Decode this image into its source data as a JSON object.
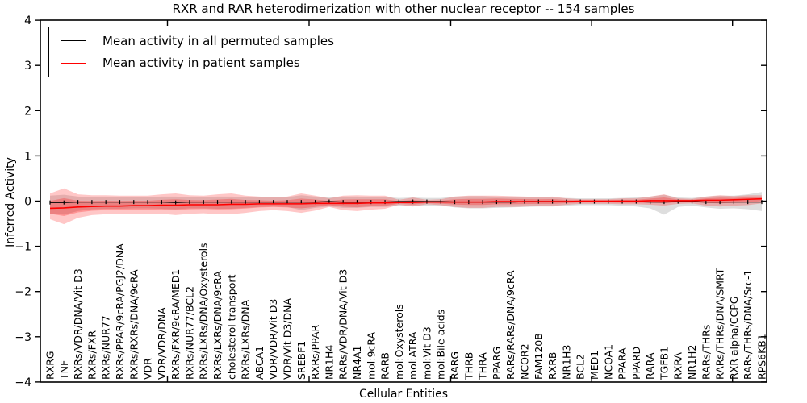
{
  "title": "RXR and RAR heterodimerization with other nuclear receptor -- 154 samples",
  "legend": {
    "items": [
      {
        "label": "Mean activity in all permuted samples",
        "color": "#000000"
      },
      {
        "label": "Mean activity in patient samples",
        "color": "#ff0000"
      }
    ]
  },
  "chart_data": {
    "type": "line",
    "title": "RXR and RAR heterodimerization with other nuclear receptor -- 154 samples",
    "xlabel": "Cellular Entities",
    "ylabel": "Inferred Activity",
    "ylim": [
      -4,
      4
    ],
    "yticks": [
      -4,
      -3,
      -2,
      -1,
      0,
      1,
      2,
      3,
      4
    ],
    "grid": false,
    "legend_position": "upper left",
    "categories": [
      "RXRG",
      "TNF",
      "RXRs/VDR/DNA/Vit D3",
      "RXRs/FXR",
      "RXRs/NUR77",
      "RXRs/PPAR/9cRA/PGJ2/DNA",
      "RXRs/RXRs/DNA/9cRA",
      "VDR",
      "VDR/VDR/DNA",
      "RXRs/FXR/9cRA/MED1",
      "RXRs/NUR77/BCL2",
      "RXRs/LXRs/DNA/Oxysterols",
      "RXRs/LXRs/DNA/9cRA",
      "cholesterol transport",
      "RXRs/LXRs/DNA",
      "ABCA1",
      "VDR/VDR/Vit D3",
      "VDR/Vit D3/DNA",
      "SREBF1",
      "RXRs/PPAR",
      "NR1H4",
      "RARs/VDR/DNA/Vit D3",
      "NR4A1",
      "mol:9cRA",
      "RARB",
      "mol:Oxysterols",
      "mol:ATRA",
      "mol:Vit D3",
      "mol:Bile acids",
      "RARG",
      "THRB",
      "THRA",
      "PPARG",
      "RARs/RARs/DNA/9cRA",
      "NCOR2",
      "FAM120B",
      "RXRB",
      "NR1H3",
      "BCL2",
      "MED1",
      "NCOA1",
      "PPARA",
      "PPARD",
      "RARA",
      "TGFB1",
      "RXRA",
      "NR1H2",
      "RARs/THRs",
      "RARs/THRs/DNA/SMRT",
      "RXR alpha/CCPG",
      "RARs/THRs/DNA/Src-1",
      "RPS6KB1"
    ],
    "series": [
      {
        "name": "Mean activity in all permuted samples",
        "color": "#000000",
        "values": [
          -0.03,
          -0.03,
          -0.02,
          -0.02,
          -0.02,
          -0.02,
          -0.02,
          -0.02,
          -0.02,
          -0.03,
          -0.02,
          -0.02,
          -0.02,
          -0.02,
          -0.02,
          -0.02,
          -0.02,
          -0.02,
          -0.02,
          -0.02,
          -0.01,
          -0.02,
          -0.02,
          -0.02,
          -0.02,
          -0.01,
          -0.01,
          -0.01,
          -0.01,
          -0.02,
          -0.02,
          -0.02,
          -0.02,
          -0.02,
          -0.01,
          -0.01,
          -0.01,
          -0.01,
          -0.01,
          -0.01,
          -0.01,
          -0.01,
          -0.01,
          -0.02,
          -0.02,
          -0.01,
          -0.01,
          -0.02,
          -0.02,
          -0.02,
          -0.02,
          -0.02
        ]
      },
      {
        "name": "Mean activity in patient samples",
        "color": "#ff0000",
        "values": [
          -0.16,
          -0.15,
          -0.13,
          -0.12,
          -0.11,
          -0.11,
          -0.1,
          -0.1,
          -0.09,
          -0.09,
          -0.08,
          -0.08,
          -0.08,
          -0.07,
          -0.07,
          -0.06,
          -0.06,
          -0.06,
          -0.06,
          -0.05,
          -0.05,
          -0.05,
          -0.05,
          -0.04,
          -0.04,
          -0.03,
          -0.03,
          -0.02,
          -0.02,
          -0.02,
          -0.02,
          -0.02,
          -0.01,
          -0.01,
          -0.01,
          -0.01,
          -0.01,
          -0.01,
          0.0,
          0.0,
          0.0,
          0.0,
          0.0,
          0.01,
          0.01,
          0.01,
          0.01,
          0.02,
          0.02,
          0.03,
          0.04,
          0.05
        ]
      }
    ],
    "bands": [
      {
        "name": "permuted samples range",
        "color": "#000000",
        "opacity": 0.13,
        "upper": [
          0.12,
          0.14,
          0.1,
          0.09,
          0.09,
          0.09,
          0.09,
          0.09,
          0.1,
          0.1,
          0.09,
          0.09,
          0.1,
          0.1,
          0.09,
          0.08,
          0.08,
          0.09,
          0.13,
          0.1,
          0.08,
          0.1,
          0.1,
          0.09,
          0.09,
          0.07,
          0.08,
          0.07,
          0.07,
          0.1,
          0.11,
          0.11,
          0.1,
          0.1,
          0.09,
          0.08,
          0.08,
          0.07,
          0.06,
          0.06,
          0.06,
          0.07,
          0.08,
          0.1,
          0.14,
          0.08,
          0.07,
          0.1,
          0.12,
          0.12,
          0.15,
          0.2
        ],
        "lower": [
          -0.28,
          -0.3,
          -0.22,
          -0.18,
          -0.17,
          -0.17,
          -0.16,
          -0.16,
          -0.17,
          -0.18,
          -0.16,
          -0.16,
          -0.17,
          -0.17,
          -0.15,
          -0.13,
          -0.12,
          -0.13,
          -0.2,
          -0.15,
          -0.12,
          -0.15,
          -0.15,
          -0.13,
          -0.13,
          -0.1,
          -0.11,
          -0.1,
          -0.1,
          -0.14,
          -0.16,
          -0.16,
          -0.15,
          -0.14,
          -0.13,
          -0.12,
          -0.12,
          -0.1,
          -0.09,
          -0.09,
          -0.09,
          -0.1,
          -0.12,
          -0.16,
          -0.3,
          -0.13,
          -0.1,
          -0.14,
          -0.17,
          -0.16,
          -0.18,
          -0.22
        ]
      },
      {
        "name": "patient samples range",
        "color": "#ff0000",
        "opacity": 0.22,
        "upper": [
          0.17,
          0.28,
          0.15,
          0.13,
          0.13,
          0.12,
          0.12,
          0.12,
          0.15,
          0.17,
          0.13,
          0.12,
          0.15,
          0.17,
          0.12,
          0.1,
          0.08,
          0.1,
          0.17,
          0.12,
          0.06,
          0.12,
          0.13,
          0.12,
          0.12,
          0.03,
          0.08,
          0.03,
          0.04,
          0.1,
          0.12,
          0.12,
          0.12,
          0.11,
          0.1,
          0.09,
          0.1,
          0.06,
          0.04,
          0.04,
          0.04,
          0.06,
          0.06,
          0.1,
          0.15,
          0.06,
          0.05,
          0.1,
          0.13,
          0.11,
          0.13,
          0.13
        ],
        "lower": [
          -0.4,
          -0.51,
          -0.37,
          -0.31,
          -0.29,
          -0.29,
          -0.28,
          -0.28,
          -0.28,
          -0.31,
          -0.28,
          -0.27,
          -0.29,
          -0.29,
          -0.26,
          -0.22,
          -0.2,
          -0.22,
          -0.26,
          -0.21,
          -0.13,
          -0.2,
          -0.22,
          -0.19,
          -0.17,
          -0.08,
          -0.12,
          -0.07,
          -0.09,
          -0.13,
          -0.15,
          -0.15,
          -0.13,
          -0.13,
          -0.12,
          -0.11,
          -0.11,
          -0.08,
          -0.06,
          -0.06,
          -0.06,
          -0.07,
          -0.07,
          -0.08,
          -0.1,
          -0.06,
          -0.05,
          -0.1,
          -0.12,
          -0.1,
          -0.09,
          -0.05
        ]
      }
    ]
  }
}
